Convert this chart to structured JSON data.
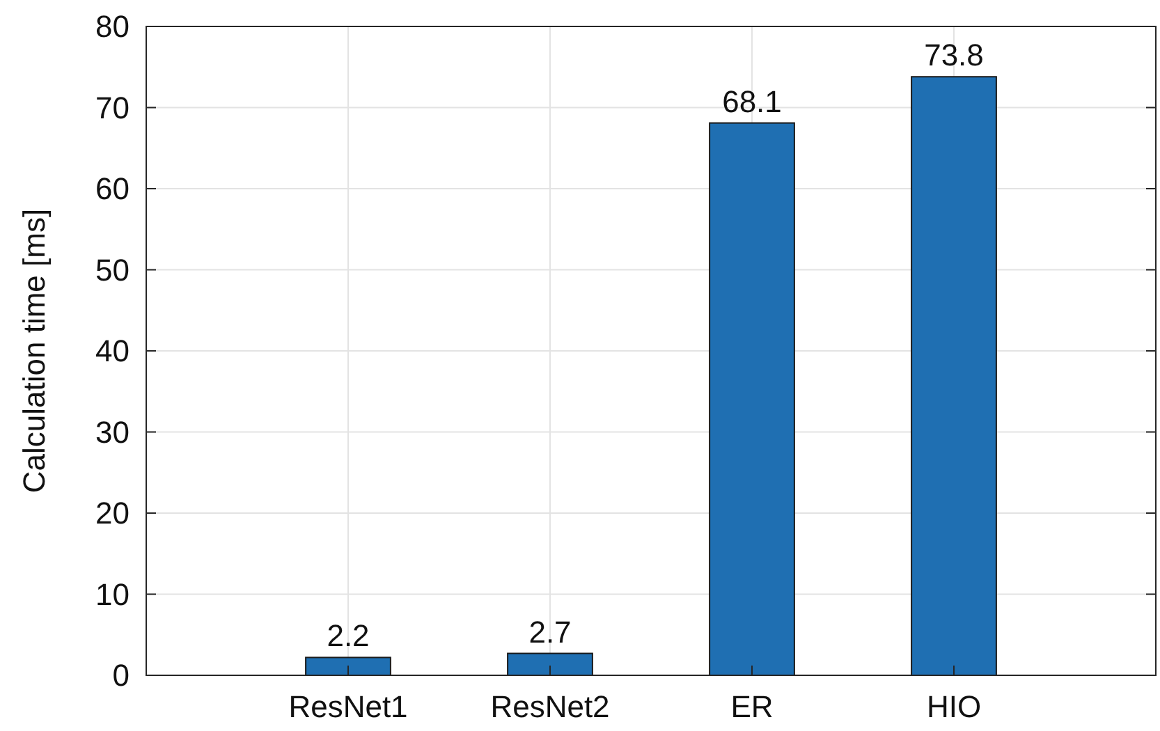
{
  "chart_data": {
    "type": "bar",
    "ylabel": "Calculation time [ms]",
    "categories": [
      "ResNet1",
      "ResNet2",
      "ER",
      "HIO"
    ],
    "values": [
      2.2,
      2.7,
      68.1,
      73.8
    ],
    "color": "#1f6fb2",
    "ylim": [
      0,
      80
    ],
    "yticks": [
      0,
      10,
      20,
      30,
      40,
      50,
      60,
      70,
      80
    ],
    "grid": true,
    "data_labels": true
  }
}
